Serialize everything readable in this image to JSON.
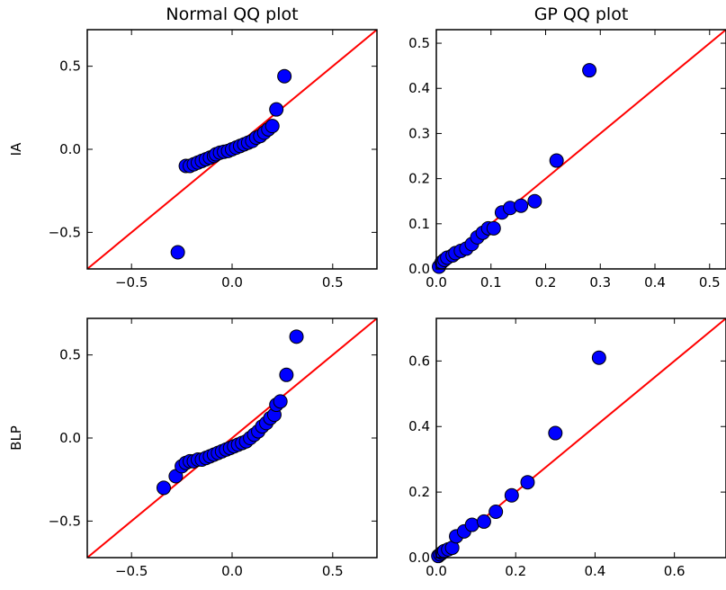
{
  "figure": {
    "column_titles": [
      "Normal QQ plot",
      "GP QQ plot"
    ],
    "row_labels": [
      "IA",
      "BLP"
    ]
  },
  "colors": {
    "point_fill": "#0000ff",
    "point_stroke": "#000000",
    "ref_line": "#ff0000"
  },
  "chart_data": [
    {
      "type": "scatter",
      "title": "Normal QQ plot",
      "ylabel": "IA",
      "xlim": [
        -0.72,
        0.72
      ],
      "ylim": [
        -0.72,
        0.72
      ],
      "xticks": [
        -0.5,
        0.0,
        0.5
      ],
      "xtick_labels": [
        "−0.5",
        "0.0",
        "0.5"
      ],
      "yticks": [
        -0.5,
        0.0,
        0.5
      ],
      "ytick_labels": [
        "−0.5",
        "0.0",
        "0.5"
      ],
      "reference_line": "y = x",
      "points": [
        [
          -0.27,
          -0.62
        ],
        [
          -0.23,
          -0.1
        ],
        [
          -0.21,
          -0.1
        ],
        [
          -0.19,
          -0.09
        ],
        [
          -0.17,
          -0.08
        ],
        [
          -0.15,
          -0.07
        ],
        [
          -0.13,
          -0.06
        ],
        [
          -0.11,
          -0.05
        ],
        [
          -0.09,
          -0.04
        ],
        [
          -0.08,
          -0.03
        ],
        [
          -0.06,
          -0.02
        ],
        [
          -0.04,
          -0.015
        ],
        [
          -0.02,
          -0.01
        ],
        [
          0.0,
          0.0
        ],
        [
          0.02,
          0.01
        ],
        [
          0.04,
          0.02
        ],
        [
          0.06,
          0.03
        ],
        [
          0.08,
          0.04
        ],
        [
          0.1,
          0.05
        ],
        [
          0.12,
          0.07
        ],
        [
          0.14,
          0.08
        ],
        [
          0.16,
          0.1
        ],
        [
          0.18,
          0.12
        ],
        [
          0.2,
          0.14
        ],
        [
          0.22,
          0.24
        ],
        [
          0.26,
          0.44
        ]
      ]
    },
    {
      "type": "scatter",
      "title": "GP QQ plot",
      "xlim": [
        0.0,
        0.53
      ],
      "ylim": [
        0.0,
        0.53
      ],
      "xticks": [
        0.0,
        0.1,
        0.2,
        0.3,
        0.4,
        0.5
      ],
      "xtick_labels": [
        "0.0",
        "0.1",
        "0.2",
        "0.3",
        "0.4",
        "0.5"
      ],
      "yticks": [
        0.0,
        0.1,
        0.2,
        0.3,
        0.4,
        0.5
      ],
      "ytick_labels": [
        "0.0",
        "0.1",
        "0.2",
        "0.3",
        "0.4",
        "0.5"
      ],
      "reference_line": "y = x",
      "points": [
        [
          0.005,
          0.005
        ],
        [
          0.01,
          0.015
        ],
        [
          0.015,
          0.02
        ],
        [
          0.02,
          0.025
        ],
        [
          0.03,
          0.03
        ],
        [
          0.035,
          0.035
        ],
        [
          0.045,
          0.04
        ],
        [
          0.055,
          0.045
        ],
        [
          0.065,
          0.055
        ],
        [
          0.075,
          0.07
        ],
        [
          0.085,
          0.08
        ],
        [
          0.095,
          0.09
        ],
        [
          0.105,
          0.09
        ],
        [
          0.12,
          0.125
        ],
        [
          0.135,
          0.135
        ],
        [
          0.155,
          0.14
        ],
        [
          0.18,
          0.15
        ],
        [
          0.22,
          0.24
        ],
        [
          0.28,
          0.44
        ]
      ]
    },
    {
      "type": "scatter",
      "ylabel": "BLP",
      "xlim": [
        -0.72,
        0.72
      ],
      "ylim": [
        -0.72,
        0.72
      ],
      "xticks": [
        -0.5,
        0.0,
        0.5
      ],
      "xtick_labels": [
        "−0.5",
        "0.0",
        "0.5"
      ],
      "yticks": [
        -0.5,
        0.0,
        0.5
      ],
      "ytick_labels": [
        "−0.5",
        "0.0",
        "0.5"
      ],
      "reference_line": "y = x",
      "points": [
        [
          -0.34,
          -0.3
        ],
        [
          -0.28,
          -0.23
        ],
        [
          -0.25,
          -0.17
        ],
        [
          -0.23,
          -0.15
        ],
        [
          -0.21,
          -0.14
        ],
        [
          -0.19,
          -0.14
        ],
        [
          -0.17,
          -0.13
        ],
        [
          -0.15,
          -0.13
        ],
        [
          -0.13,
          -0.12
        ],
        [
          -0.11,
          -0.11
        ],
        [
          -0.09,
          -0.1
        ],
        [
          -0.07,
          -0.09
        ],
        [
          -0.05,
          -0.08
        ],
        [
          -0.03,
          -0.07
        ],
        [
          -0.01,
          -0.06
        ],
        [
          0.01,
          -0.05
        ],
        [
          0.03,
          -0.04
        ],
        [
          0.05,
          -0.03
        ],
        [
          0.07,
          -0.02
        ],
        [
          0.09,
          0.0
        ],
        [
          0.11,
          0.02
        ],
        [
          0.13,
          0.04
        ],
        [
          0.15,
          0.07
        ],
        [
          0.17,
          0.09
        ],
        [
          0.19,
          0.12
        ],
        [
          0.21,
          0.14
        ],
        [
          0.22,
          0.2
        ],
        [
          0.24,
          0.22
        ],
        [
          0.27,
          0.38
        ],
        [
          0.32,
          0.61
        ]
      ]
    },
    {
      "type": "scatter",
      "xlim": [
        0.0,
        0.73
      ],
      "ylim": [
        0.0,
        0.73
      ],
      "xticks": [
        0.0,
        0.2,
        0.4,
        0.6
      ],
      "xtick_labels": [
        "0.0",
        "0.2",
        "0.4",
        "0.6"
      ],
      "yticks": [
        0.0,
        0.2,
        0.4,
        0.6
      ],
      "ytick_labels": [
        "0.0",
        "0.2",
        "0.4",
        "0.6"
      ],
      "reference_line": "y = x",
      "points": [
        [
          0.005,
          0.005
        ],
        [
          0.01,
          0.01
        ],
        [
          0.015,
          0.015
        ],
        [
          0.02,
          0.02
        ],
        [
          0.03,
          0.025
        ],
        [
          0.04,
          0.03
        ],
        [
          0.05,
          0.065
        ],
        [
          0.07,
          0.08
        ],
        [
          0.09,
          0.1
        ],
        [
          0.12,
          0.11
        ],
        [
          0.15,
          0.14
        ],
        [
          0.19,
          0.19
        ],
        [
          0.23,
          0.23
        ],
        [
          0.3,
          0.38
        ],
        [
          0.41,
          0.61
        ]
      ]
    }
  ]
}
